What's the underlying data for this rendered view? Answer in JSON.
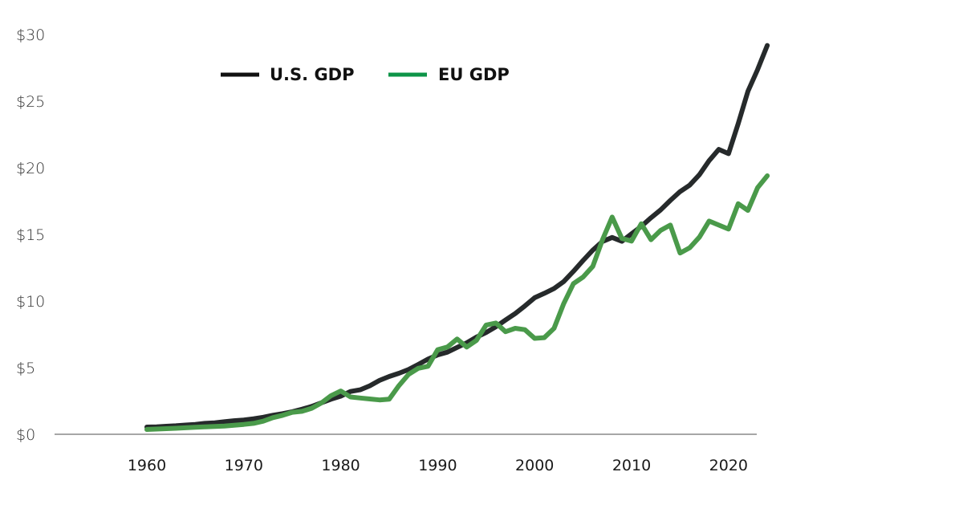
{
  "chart_data": {
    "type": "line",
    "title": "",
    "xlabel": "",
    "ylabel": "",
    "xlim": [
      1950,
      2025
    ],
    "ylim": [
      0,
      30
    ],
    "x_ticks": [
      1960,
      1970,
      1980,
      1990,
      2000,
      2010,
      2020
    ],
    "x_tick_labels": [
      "1960",
      "1970",
      "1980",
      "1990",
      "2000",
      "2010",
      "2020"
    ],
    "y_ticks": [
      0,
      5,
      10,
      15,
      20,
      25,
      30
    ],
    "y_tick_labels": [
      "$0",
      "$5",
      "$10",
      "$15",
      "$20",
      "$25",
      "$30"
    ],
    "grid": false,
    "legend_position": "top-left",
    "x": [
      1960,
      1961,
      1962,
      1963,
      1964,
      1965,
      1966,
      1967,
      1968,
      1969,
      1970,
      1971,
      1972,
      1973,
      1974,
      1975,
      1976,
      1977,
      1978,
      1979,
      1980,
      1981,
      1982,
      1983,
      1984,
      1985,
      1986,
      1987,
      1988,
      1989,
      1990,
      1991,
      1992,
      1993,
      1994,
      1995,
      1996,
      1997,
      1998,
      1999,
      2000,
      2001,
      2002,
      2003,
      2004,
      2005,
      2006,
      2007,
      2008,
      2009,
      2010,
      2011,
      2012,
      2013,
      2014,
      2015,
      2016,
      2017,
      2018,
      2019,
      2020,
      2021,
      2022,
      2023,
      2024
    ],
    "series": [
      {
        "name": "U.S. GDP",
        "color": "#262a2b",
        "values": [
          0.54,
          0.56,
          0.6,
          0.64,
          0.69,
          0.74,
          0.82,
          0.86,
          0.94,
          1.02,
          1.07,
          1.16,
          1.28,
          1.43,
          1.55,
          1.69,
          1.88,
          2.09,
          2.36,
          2.63,
          2.86,
          3.21,
          3.34,
          3.64,
          4.04,
          4.34,
          4.58,
          4.86,
          5.24,
          5.64,
          5.96,
          6.16,
          6.52,
          6.86,
          7.29,
          7.64,
          8.07,
          8.58,
          9.06,
          9.63,
          10.25,
          10.58,
          10.94,
          11.46,
          12.22,
          13.04,
          13.82,
          14.47,
          14.77,
          14.48,
          15.05,
          15.6,
          16.25,
          16.84,
          17.55,
          18.21,
          18.7,
          19.48,
          20.53,
          21.38,
          21.06,
          23.32,
          25.74,
          27.36,
          29.18
        ]
      },
      {
        "name": "EU GDP",
        "color": "#4a9a4a",
        "legend_color": "#0e9448",
        "values": [
          0.36,
          0.39,
          0.42,
          0.45,
          0.49,
          0.53,
          0.56,
          0.59,
          0.62,
          0.68,
          0.74,
          0.82,
          0.98,
          1.25,
          1.42,
          1.65,
          1.72,
          1.95,
          2.35,
          2.9,
          3.25,
          2.8,
          2.72,
          2.65,
          2.58,
          2.64,
          3.65,
          4.5,
          4.95,
          5.1,
          6.35,
          6.55,
          7.15,
          6.55,
          7.05,
          8.2,
          8.35,
          7.7,
          7.95,
          7.85,
          7.2,
          7.25,
          7.95,
          9.8,
          11.3,
          11.8,
          12.6,
          14.6,
          16.3,
          14.7,
          14.5,
          15.8,
          14.6,
          15.3,
          15.7,
          13.6,
          14.0,
          14.8,
          16.0,
          15.7,
          15.4,
          17.3,
          16.8,
          18.5,
          19.4
        ]
      }
    ]
  }
}
